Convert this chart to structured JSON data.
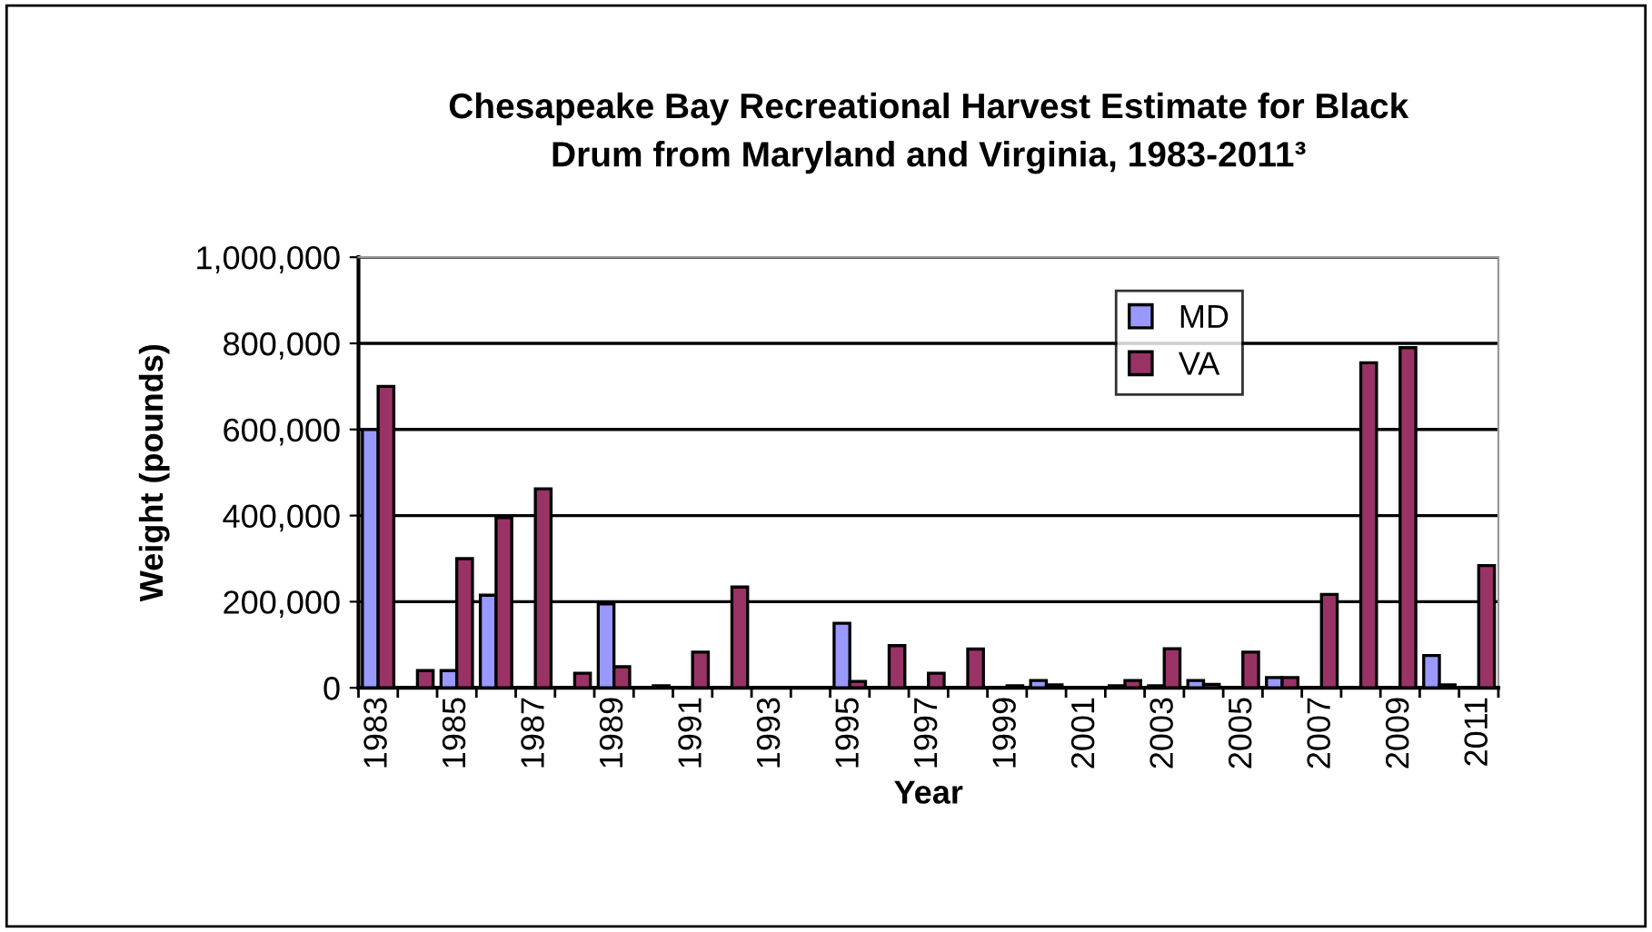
{
  "chart_data": {
    "type": "bar",
    "title": "Chesapeake Bay Recreational Harvest Estimate for Black\nDrum from Maryland and Virginia, 1983-2011³",
    "xlabel": "Year",
    "ylabel": "Weight (pounds)",
    "categories": [
      "1983",
      null,
      "1985",
      null,
      "1987",
      null,
      "1989",
      null,
      "1991",
      null,
      "1993",
      null,
      "1995",
      null,
      "1997",
      null,
      "1999",
      null,
      "2001",
      null,
      "2003",
      null,
      "2005",
      null,
      "2007",
      null,
      "2009",
      null,
      "2011"
    ],
    "series": [
      {
        "name": "MD",
        "color": "#9999ff",
        "values": [
          600000,
          null,
          40000,
          215000,
          null,
          null,
          195000,
          null,
          null,
          null,
          null,
          null,
          150000,
          null,
          null,
          null,
          null,
          17000,
          null,
          5000,
          5000,
          17000,
          null,
          24000,
          null,
          null,
          null,
          75000,
          null
        ]
      },
      {
        "name": "VA",
        "color": "#993366",
        "values": [
          700000,
          40000,
          300000,
          395000,
          462000,
          34000,
          49000,
          5000,
          83000,
          234000,
          null,
          null,
          15000,
          98000,
          34000,
          90000,
          5000,
          7000,
          null,
          17000,
          91000,
          8000,
          83000,
          24000,
          217000,
          755000,
          790000,
          7000,
          284000
        ]
      }
    ],
    "ylim": [
      0,
      1000000
    ],
    "yticks": [
      0,
      {
        "value": 200000,
        "label": "200,000"
      },
      {
        "value": 400000,
        "label": "400,000"
      },
      {
        "value": 600000,
        "label": "600,000"
      },
      {
        "value": 800000,
        "label": "800,000"
      },
      {
        "value": 1000000,
        "label": "1,000,000"
      }
    ],
    "grid": "y",
    "legend": "top right"
  }
}
